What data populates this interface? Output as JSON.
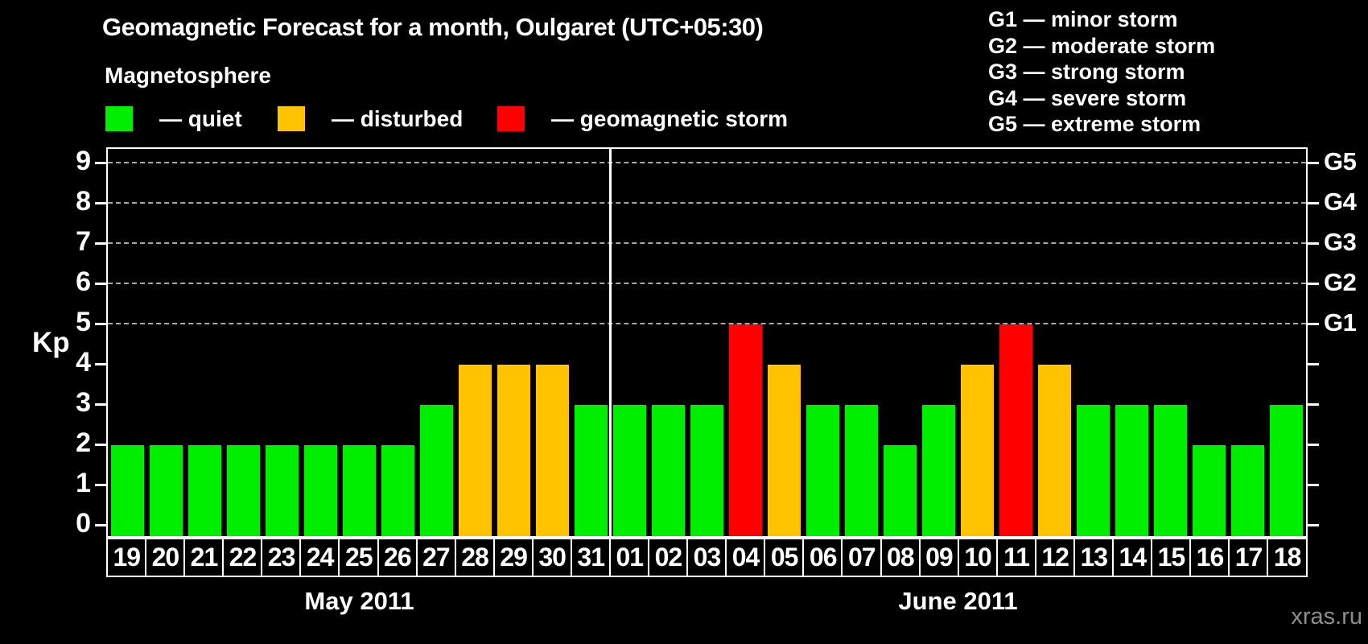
{
  "title": "Geomagnetic Forecast for a month, Oulgaret (UTC+05:30)",
  "magnetosphere_legend": {
    "heading": "Magnetosphere",
    "items": [
      {
        "status": "quiet",
        "label": "— quiet",
        "color": "#00ee00"
      },
      {
        "status": "disturbed",
        "label": "— disturbed",
        "color": "#ffc300"
      },
      {
        "status": "storm",
        "label": "— geomagnetic storm",
        "color": "#ff0000"
      }
    ]
  },
  "g_scale_legend": {
    "items": [
      "G1 — minor storm",
      "G2 — moderate storm",
      "G3 — strong storm",
      "G4 — severe storm",
      "G5 — extreme storm"
    ]
  },
  "watermark": "xras.ru",
  "colors": {
    "quiet": "#00ee00",
    "disturbed": "#ffc300",
    "storm": "#ff0000",
    "axis": "#ffffff",
    "grid": "#a8a8a8",
    "background": "#000000",
    "watermark": "#8d8d8d"
  },
  "chart_data": {
    "type": "bar",
    "title": "Geomagnetic Forecast for a month, Oulgaret (UTC+05:30)",
    "ylabel": "Kp",
    "ylim": [
      0,
      9
    ],
    "y_ticks": [
      0,
      1,
      2,
      3,
      4,
      5,
      6,
      7,
      8,
      9
    ],
    "gridlines_at_kp": [
      5,
      6,
      7,
      8,
      9
    ],
    "grid": "dashed horizontal lines at storm levels Kp 5-9",
    "legend_position": "top-left",
    "right_axis": [
      {
        "label": "G1",
        "kp": 5
      },
      {
        "label": "G2",
        "kp": 6
      },
      {
        "label": "G3",
        "kp": 7
      },
      {
        "label": "G4",
        "kp": 8
      },
      {
        "label": "G5",
        "kp": 9
      }
    ],
    "months": [
      {
        "label": "May 2011",
        "days": [
          {
            "day": "19",
            "kp": 2,
            "status": "quiet"
          },
          {
            "day": "20",
            "kp": 2,
            "status": "quiet"
          },
          {
            "day": "21",
            "kp": 2,
            "status": "quiet"
          },
          {
            "day": "22",
            "kp": 2,
            "status": "quiet"
          },
          {
            "day": "23",
            "kp": 2,
            "status": "quiet"
          },
          {
            "day": "24",
            "kp": 2,
            "status": "quiet"
          },
          {
            "day": "25",
            "kp": 2,
            "status": "quiet"
          },
          {
            "day": "26",
            "kp": 2,
            "status": "quiet"
          },
          {
            "day": "27",
            "kp": 3,
            "status": "quiet"
          },
          {
            "day": "28",
            "kp": 4,
            "status": "disturbed"
          },
          {
            "day": "29",
            "kp": 4,
            "status": "disturbed"
          },
          {
            "day": "30",
            "kp": 4,
            "status": "disturbed"
          },
          {
            "day": "31",
            "kp": 3,
            "status": "quiet"
          }
        ]
      },
      {
        "label": "June 2011",
        "days": [
          {
            "day": "01",
            "kp": 3,
            "status": "quiet"
          },
          {
            "day": "02",
            "kp": 3,
            "status": "quiet"
          },
          {
            "day": "03",
            "kp": 3,
            "status": "quiet"
          },
          {
            "day": "04",
            "kp": 5,
            "status": "storm"
          },
          {
            "day": "05",
            "kp": 4,
            "status": "disturbed"
          },
          {
            "day": "06",
            "kp": 3,
            "status": "quiet"
          },
          {
            "day": "07",
            "kp": 3,
            "status": "quiet"
          },
          {
            "day": "08",
            "kp": 2,
            "status": "quiet"
          },
          {
            "day": "09",
            "kp": 3,
            "status": "quiet"
          },
          {
            "day": "10",
            "kp": 4,
            "status": "disturbed"
          },
          {
            "day": "11",
            "kp": 5,
            "status": "storm"
          },
          {
            "day": "12",
            "kp": 4,
            "status": "disturbed"
          },
          {
            "day": "13",
            "kp": 3,
            "status": "quiet"
          },
          {
            "day": "14",
            "kp": 3,
            "status": "quiet"
          },
          {
            "day": "15",
            "kp": 3,
            "status": "quiet"
          },
          {
            "day": "16",
            "kp": 2,
            "status": "quiet"
          },
          {
            "day": "17",
            "kp": 2,
            "status": "quiet"
          },
          {
            "day": "18",
            "kp": 3,
            "status": "quiet"
          }
        ]
      }
    ]
  }
}
